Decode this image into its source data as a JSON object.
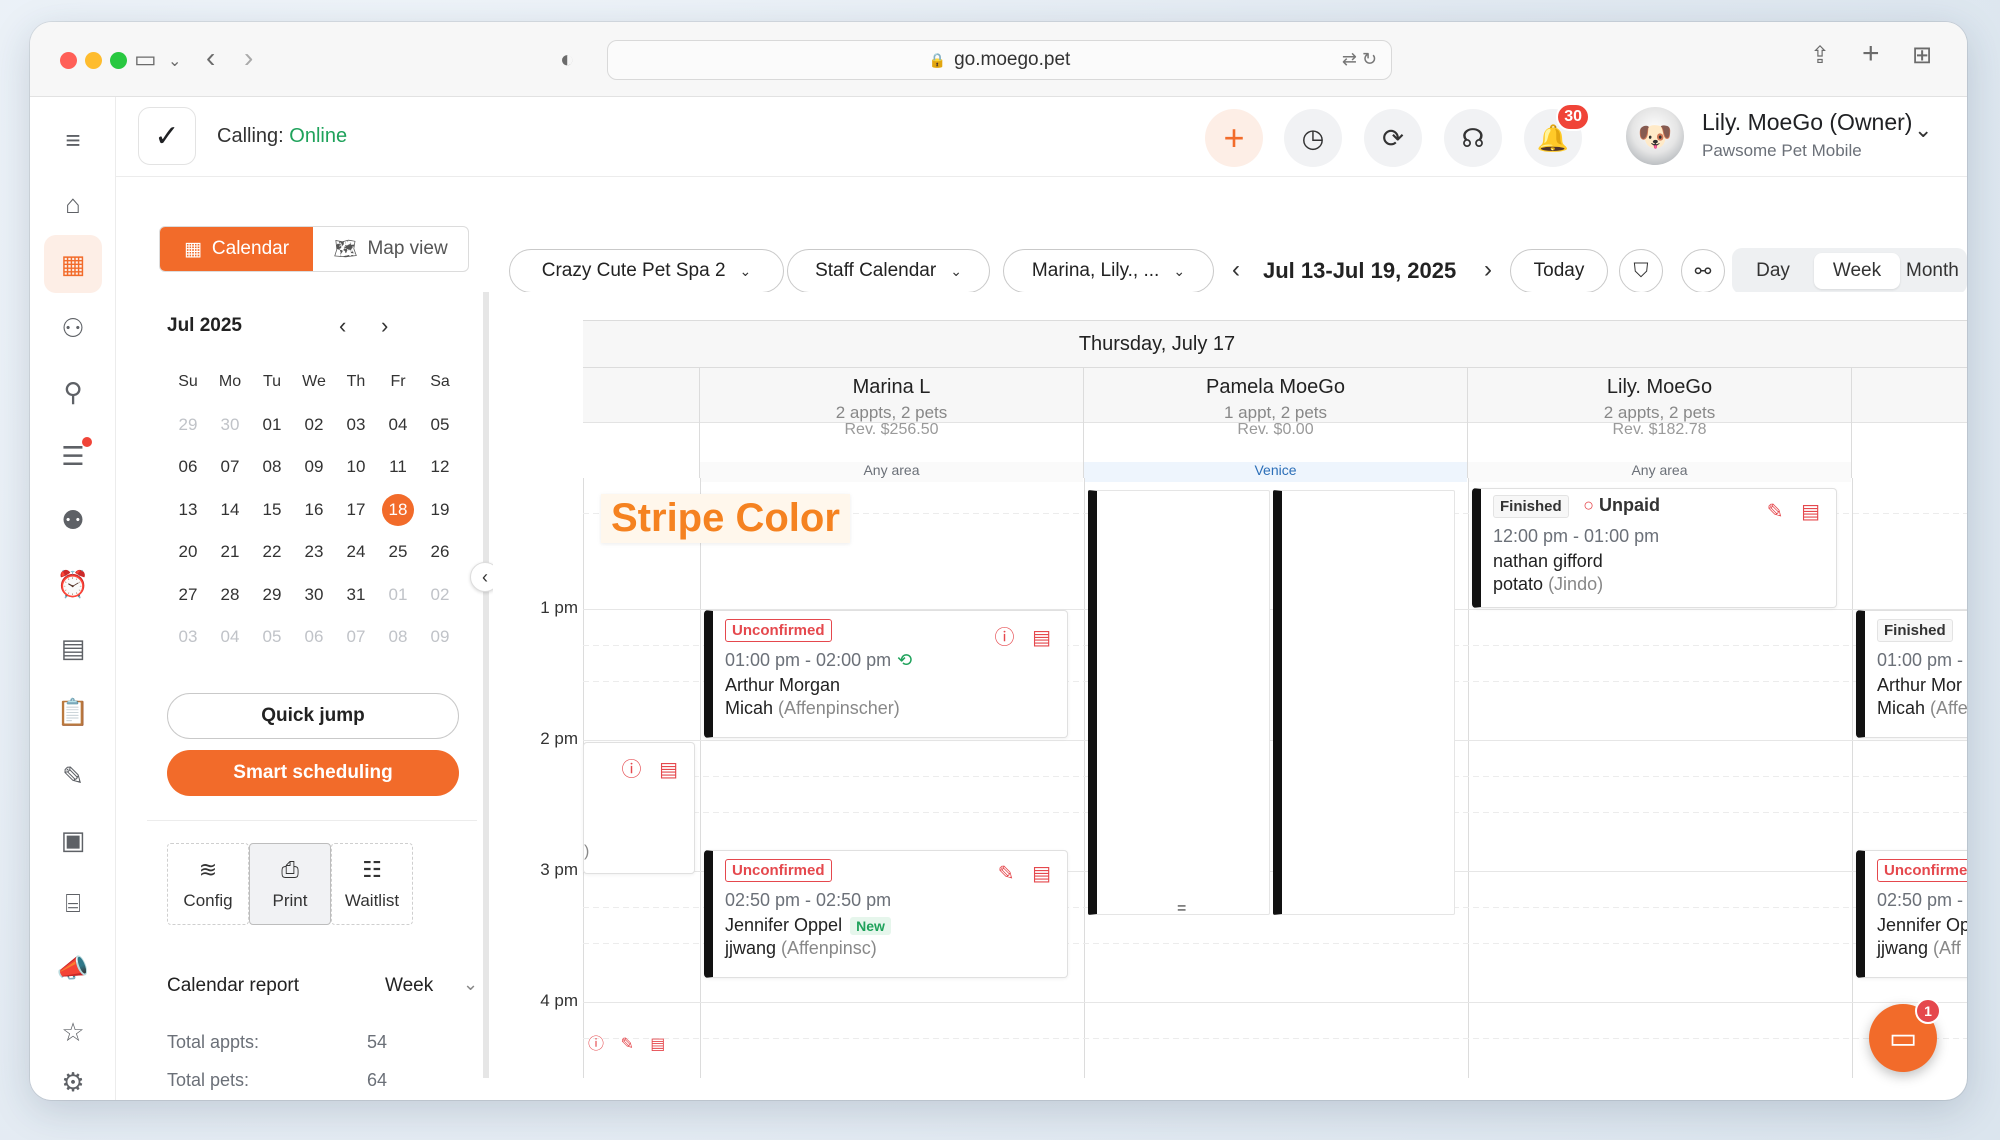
{
  "browser": {
    "url": "go.moego.pet"
  },
  "header": {
    "calling_label": "Calling:",
    "calling_status": "Online",
    "notification_count": "30",
    "user_name": "Lily. MoeGo (Owner)",
    "business_name": "Pawsome Pet Mobile"
  },
  "view_toggle": {
    "calendar": "Calendar",
    "map": "Map view"
  },
  "toolbar": {
    "location": "Crazy Cute Pet Spa 2",
    "calendar_type": "Staff Calendar",
    "staff_filter": "Marina, Lily., ...",
    "date_range": "Jul 13-Jul 19, 2025",
    "today": "Today",
    "views": [
      "Day",
      "Week",
      "Month"
    ],
    "active_view": "Week"
  },
  "mini_calendar": {
    "month_label": "Jul 2025",
    "weekdays": [
      "Su",
      "Mo",
      "Tu",
      "We",
      "Th",
      "Fr",
      "Sa"
    ],
    "weeks": [
      [
        "29",
        "30",
        "01",
        "02",
        "03",
        "04",
        "05"
      ],
      [
        "06",
        "07",
        "08",
        "09",
        "10",
        "11",
        "12"
      ],
      [
        "13",
        "14",
        "15",
        "16",
        "17",
        "18",
        "19"
      ],
      [
        "20",
        "21",
        "22",
        "23",
        "24",
        "25",
        "26"
      ],
      [
        "27",
        "28",
        "29",
        "30",
        "31",
        "01",
        "02"
      ],
      [
        "03",
        "04",
        "05",
        "06",
        "07",
        "08",
        "09"
      ]
    ],
    "selected_day": "18"
  },
  "left_panel": {
    "quick_jump": "Quick jump",
    "smart_scheduling": "Smart scheduling",
    "tools": [
      "Config",
      "Print",
      "Waitlist"
    ],
    "report_title": "Calendar report",
    "report_period": "Week",
    "report_rows": [
      {
        "label": "Total appts:",
        "value": "54"
      },
      {
        "label": "Total pets:",
        "value": "64"
      }
    ]
  },
  "calendar": {
    "day_title": "Thursday, July 17",
    "time_labels": [
      "1 pm",
      "2 pm",
      "3 pm",
      "4 pm"
    ],
    "annotation": "Stripe Color",
    "staff": [
      {
        "name": "Marina L",
        "summary": "2 appts, 2 pets",
        "revenue": "Rev. $256.50",
        "area": "Any area"
      },
      {
        "name": "Pamela MoeGo",
        "summary": "1 appt, 2 pets",
        "revenue": "Rev. $0.00",
        "area": "Venice"
      },
      {
        "name": "Lily. MoeGo",
        "summary": "2 appts, 2 pets",
        "revenue": "Rev. $182.78",
        "area": "Any area"
      }
    ],
    "appointments": {
      "lily_1": {
        "status": "Finished",
        "payment": "Unpaid",
        "time": "12:00 pm - 01:00 pm",
        "client": "nathan gifford",
        "pet": "potato",
        "breed": "(Jindo)"
      },
      "marina_1": {
        "status": "Unconfirmed",
        "time": "01:00 pm - 02:00 pm",
        "client": "Arthur Morgan",
        "pet": "Micah",
        "breed": "(Affenpinscher)"
      },
      "marina_2": {
        "status": "Unconfirmed",
        "time": "02:50 pm - 02:50 pm",
        "client": "Jennifer Oppel",
        "tag": "New",
        "pet": "jjwang",
        "breed": "(Affenpinsc)"
      },
      "next_1": {
        "status": "Finished",
        "time": "01:00 pm -",
        "client": "Arthur Mor",
        "pet": "Micah",
        "breed": "(Affe"
      },
      "next_2": {
        "status": "Unconfirme",
        "time": "02:50 pm -",
        "client": "Jennifer Op",
        "pet": "jjwang",
        "breed": "(Aff"
      }
    }
  },
  "chat": {
    "badge": "1"
  },
  "colors": {
    "accent": "#f26b2a",
    "online": "#1fa25b",
    "alert": "#e5484d"
  }
}
